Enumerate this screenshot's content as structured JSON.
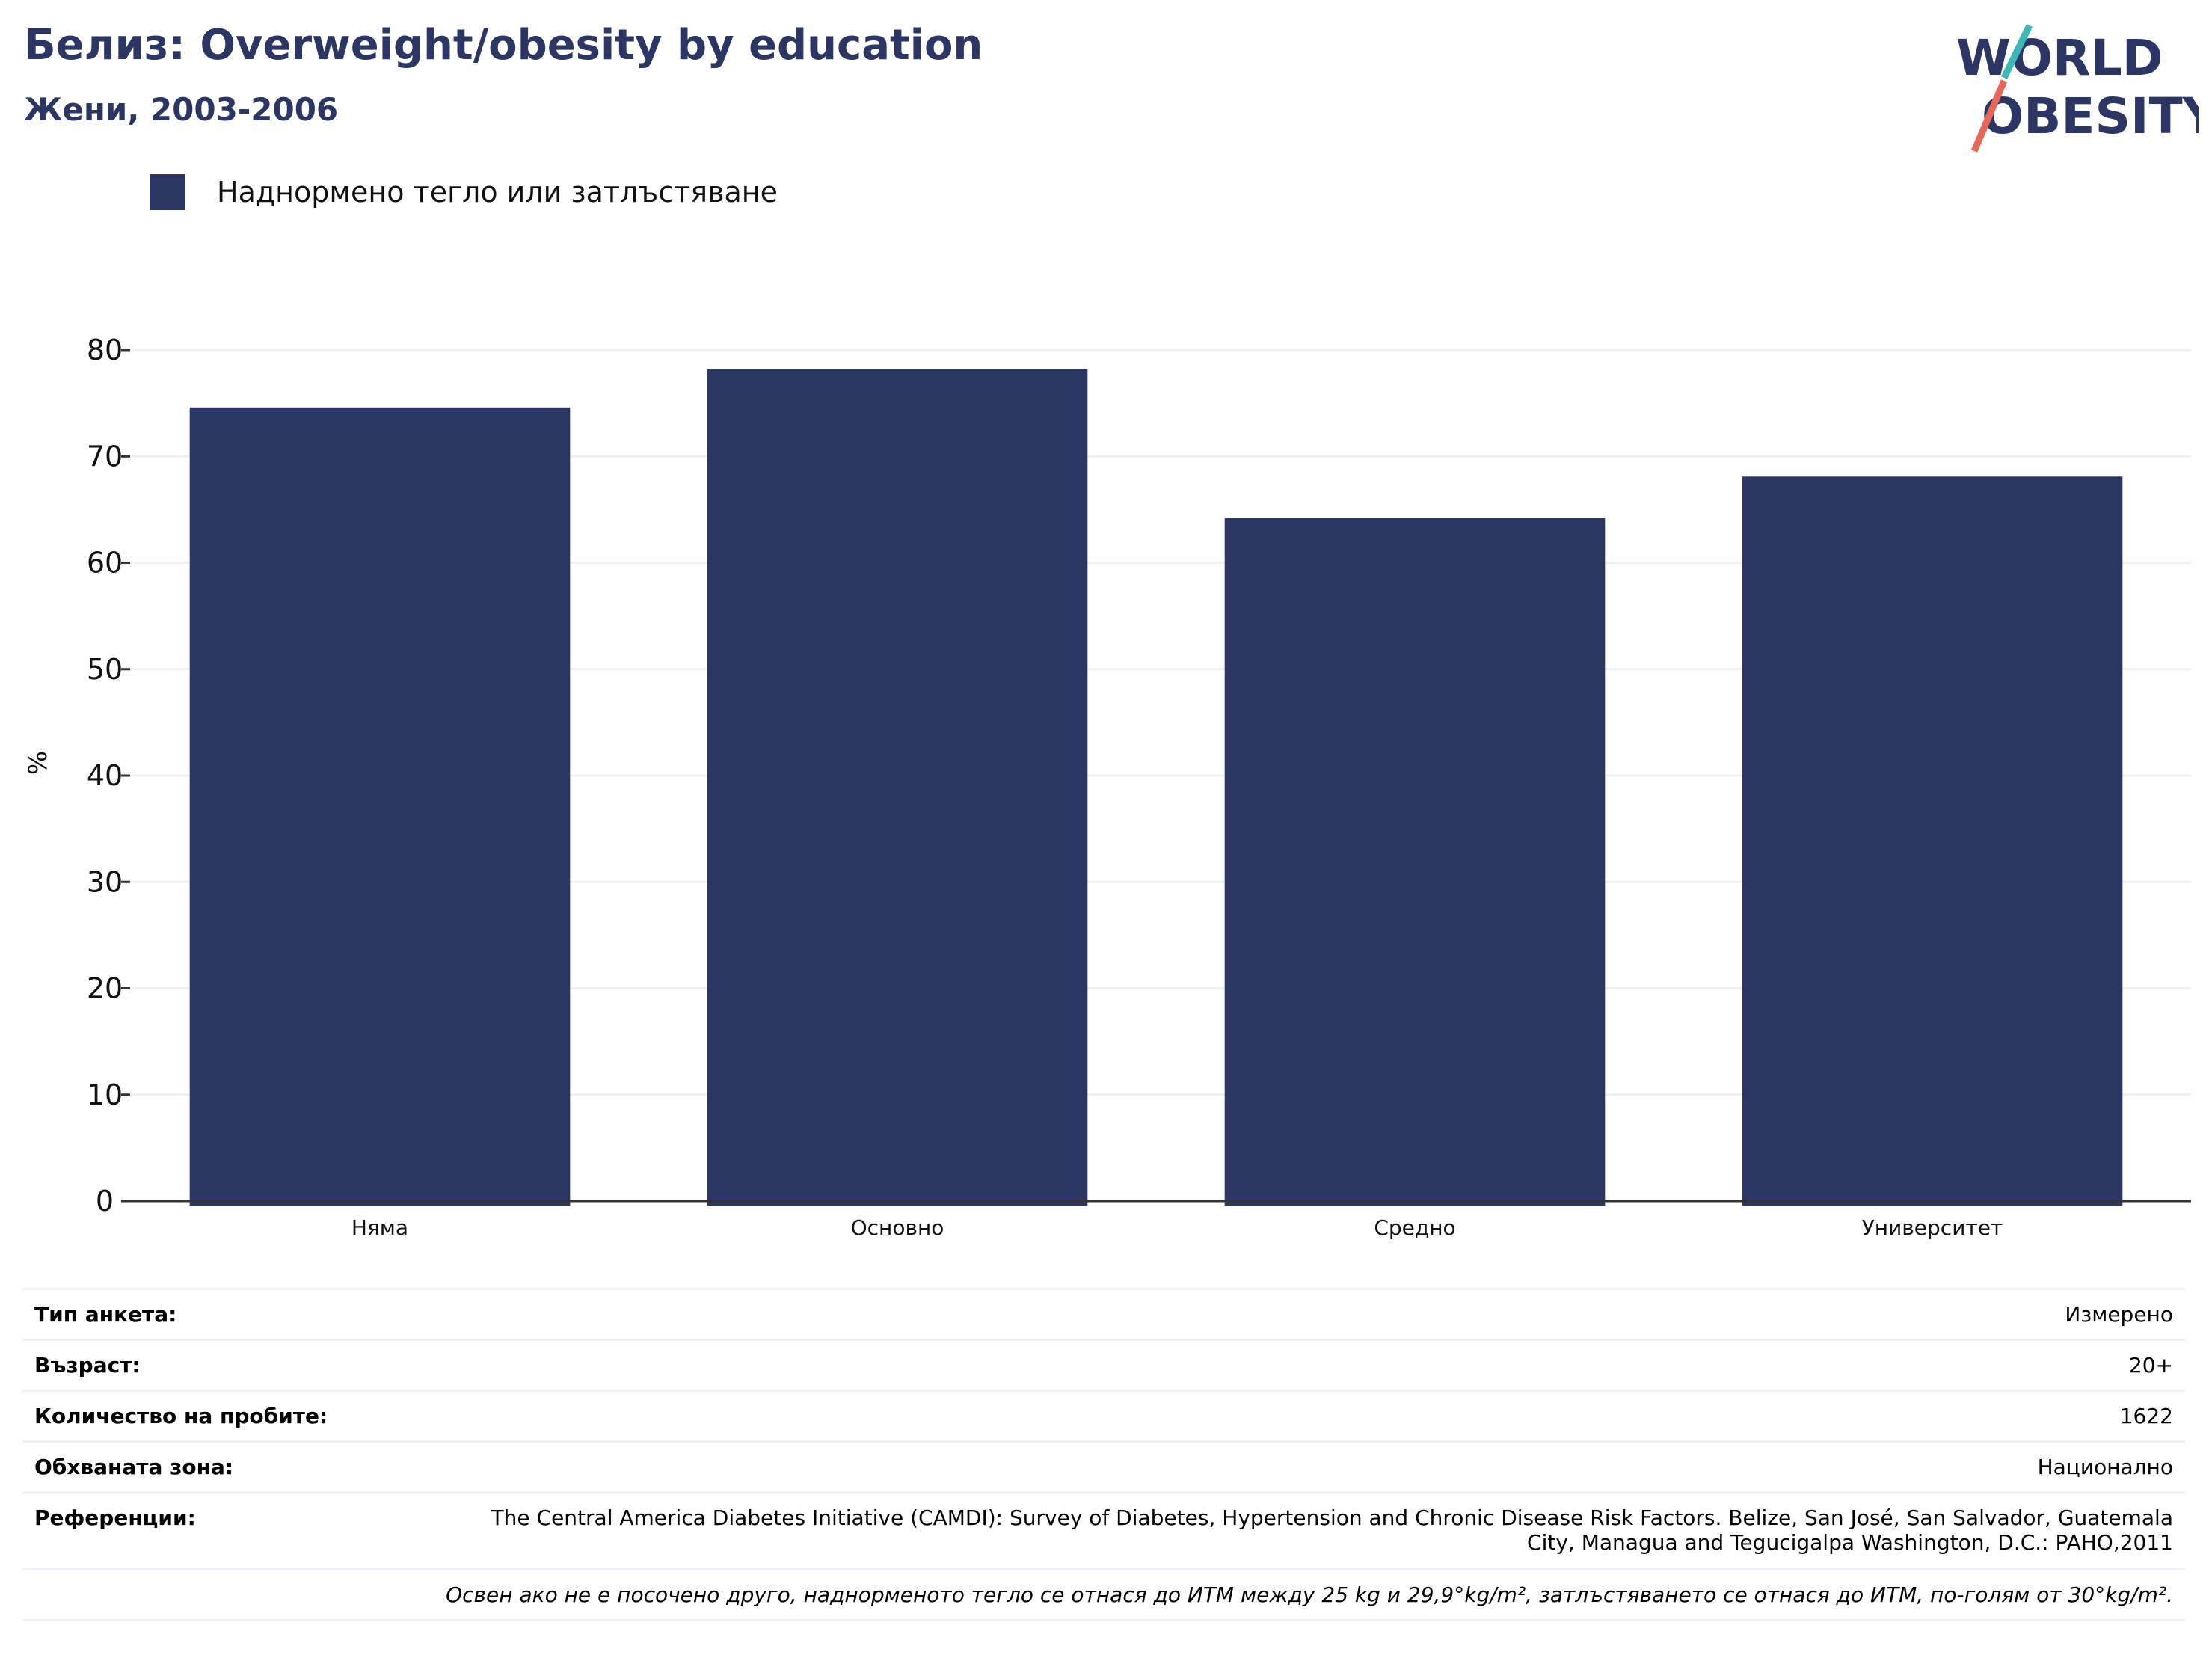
{
  "header": {
    "title": "Белиз: Overweight/obesity by education",
    "subtitle": "Жени, 2003-2006"
  },
  "logo": {
    "line1": "WORLD",
    "line2": "OBESITY"
  },
  "legend": {
    "label": "Наднормено тегло или затлъстяване",
    "color": "#2b3664"
  },
  "chart_data": {
    "type": "bar",
    "categories": [
      "Няма",
      "Основно",
      "Средно",
      "Университет"
    ],
    "series": [
      {
        "name": "Наднормено тегло или затлъстяване",
        "values": [
          74.6,
          78.2,
          64.2,
          68.1
        ]
      }
    ],
    "xlabel": "",
    "ylabel": "%",
    "ylim": [
      0,
      80
    ],
    "yticks": [
      0,
      10,
      20,
      30,
      40,
      50,
      60,
      70,
      80
    ],
    "grid": true,
    "legend_position": "top-left",
    "bar_color": "#2b3664"
  },
  "meta": {
    "rows": [
      {
        "key": "Тип анкета:",
        "value": "Измерено"
      },
      {
        "key": "Възраст:",
        "value": "20+"
      },
      {
        "key": "Количество на пробите:",
        "value": "1622"
      },
      {
        "key": "Обхваната зона:",
        "value": "Национално"
      }
    ],
    "reference_key": "Референции:",
    "reference_value": "The Central America Diabetes Initiative (CAMDI): Survey of Diabetes, Hypertension and Chronic Disease Risk Factors. Belize, San José, San Salvador, Guatemala City, Managua and Tegucigalpa Washington, D.C.: PAHO,2011",
    "note": "Освен ако не е посочено друго, наднорменото тегло се отнася до ИТМ между 25 kg и 29,9°kg/m², затлъстяването се отнася до ИТМ, по-голям от 30°kg/m²."
  },
  "colors": {
    "accent": "#2b3664",
    "logo_teal": "#3bb8b8",
    "logo_coral": "#e8665a",
    "grid": "#eef0f3"
  }
}
